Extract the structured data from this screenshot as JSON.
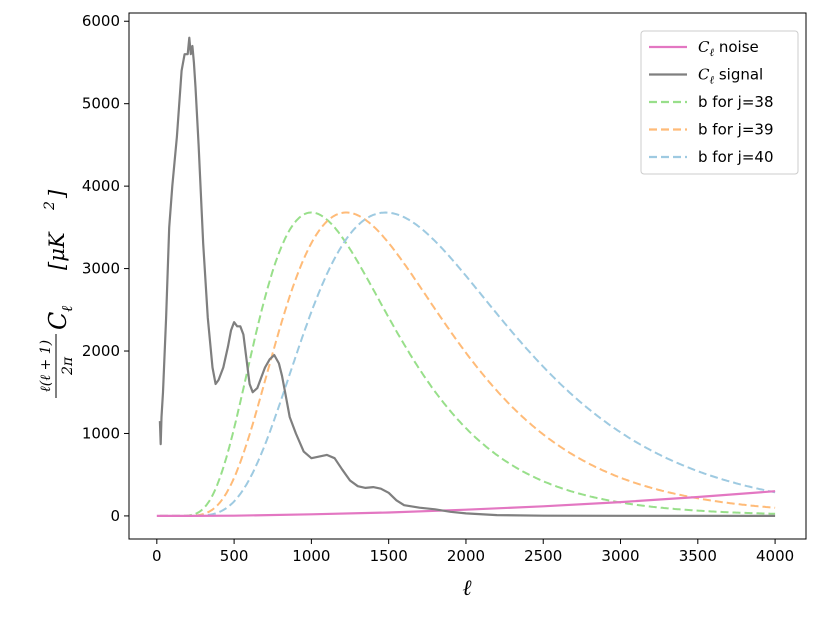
{
  "chart_data": {
    "type": "line",
    "xlabel": "ℓ",
    "ylabel": {
      "frac_num": "ℓ(ℓ + 1)",
      "frac_den": "2π",
      "symbol": "C",
      "subscript": "ℓ",
      "units": "[μK",
      "units_sup": "2",
      "units_close": "]"
    },
    "xlim": [
      -180,
      4200
    ],
    "ylim": [
      -280,
      6100
    ],
    "xticks": [
      0,
      500,
      1000,
      1500,
      2000,
      2500,
      3000,
      3500,
      4000
    ],
    "yticks": [
      0,
      1000,
      2000,
      3000,
      4000,
      5000,
      6000
    ],
    "grid": false,
    "legend_position": "top-right",
    "series": [
      {
        "name": "C_ℓ noise",
        "legend_symbol": "C",
        "legend_sub": "ℓ",
        "legend_rest": " noise",
        "color": "#e377c2",
        "style": "solid",
        "x": [
          0,
          200,
          500,
          1000,
          1500,
          2000,
          2500,
          3000,
          3500,
          4000
        ],
        "y": [
          0,
          0.4,
          3,
          19,
          42,
          75,
          117,
          168,
          229,
          300
        ]
      },
      {
        "name": "C_ℓ signal",
        "legend_symbol": "C",
        "legend_sub": "ℓ",
        "legend_rest": " signal",
        "color": "#7f7f7f",
        "style": "solid",
        "x": [
          20,
          25,
          30,
          40,
          60,
          80,
          100,
          130,
          160,
          180,
          200,
          210,
          220,
          230,
          240,
          250,
          270,
          300,
          330,
          360,
          380,
          400,
          430,
          460,
          480,
          500,
          520,
          540,
          560,
          580,
          600,
          620,
          650,
          680,
          700,
          730,
          760,
          790,
          810,
          830,
          860,
          900,
          950,
          1000,
          1050,
          1100,
          1150,
          1200,
          1250,
          1300,
          1350,
          1400,
          1450,
          1500,
          1550,
          1600,
          1700,
          1800,
          1900,
          2000,
          2200,
          2500,
          3000,
          4000
        ],
        "y": [
          1150,
          870,
          1200,
          1500,
          2400,
          3500,
          4000,
          4600,
          5400,
          5600,
          5600,
          5800,
          5600,
          5700,
          5500,
          5200,
          4500,
          3300,
          2400,
          1800,
          1600,
          1650,
          1800,
          2050,
          2250,
          2350,
          2300,
          2300,
          2200,
          1900,
          1600,
          1500,
          1550,
          1700,
          1800,
          1900,
          1950,
          1850,
          1700,
          1500,
          1200,
          1000,
          780,
          700,
          720,
          740,
          700,
          560,
          430,
          360,
          340,
          350,
          330,
          280,
          190,
          130,
          100,
          80,
          50,
          30,
          10,
          3,
          1,
          0
        ]
      },
      {
        "name": "b for j=38",
        "legend_rest": "b for j=38",
        "color": "#98df8a",
        "style": "dashed",
        "peak_x": 1000,
        "peak_y": 3680,
        "log_width": 0.44,
        "x_start": 20,
        "x_end": 4000
      },
      {
        "name": "b for j=39",
        "legend_rest": "b for j=39",
        "color": "#ffbb78",
        "style": "dashed",
        "peak_x": 1225,
        "peak_y": 3680,
        "log_width": 0.44,
        "x_start": 20,
        "x_end": 4000
      },
      {
        "name": "b for j=40",
        "legend_rest": "b for j=40",
        "color": "#9ecae1",
        "style": "dashed",
        "peak_x": 1480,
        "peak_y": 3680,
        "log_width": 0.44,
        "x_start": 20,
        "x_end": 4000
      }
    ]
  }
}
